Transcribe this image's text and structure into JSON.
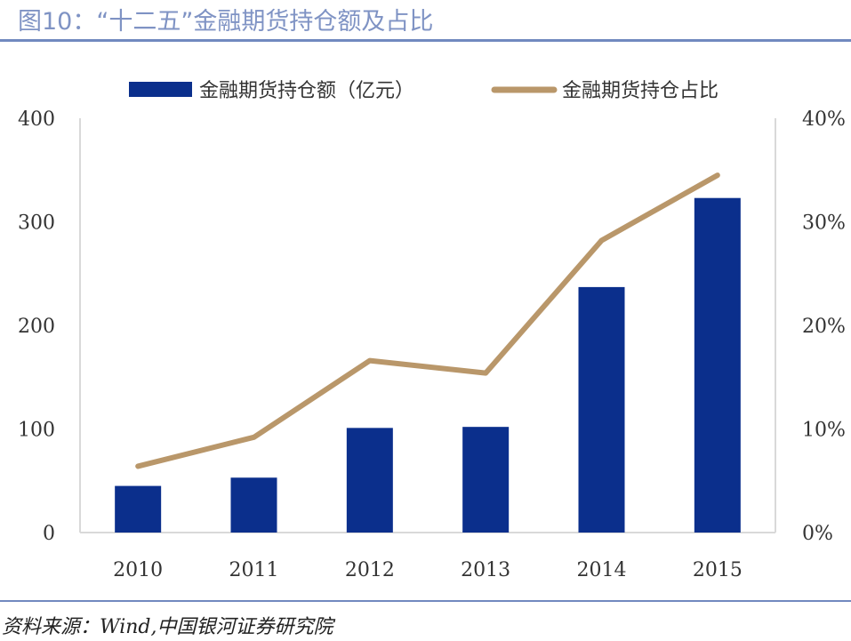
{
  "header": {
    "title": "图10：“十二五”金融期货持仓额及占比"
  },
  "footer": {
    "source": "资料来源：Wind,中国银河证券研究院"
  },
  "colors": {
    "bar": "#0b2f8c",
    "line": "#b9976a",
    "title": "#7f93c4",
    "rule": "#7189bf"
  },
  "chart_data": {
    "type": "bar+line",
    "categories": [
      "2010",
      "2011",
      "2012",
      "2013",
      "2014",
      "2015"
    ],
    "series": [
      {
        "name": "金融期货持仓额（亿元）",
        "type": "bar",
        "axis": "left",
        "values": [
          45,
          53,
          101,
          102,
          237,
          323
        ]
      },
      {
        "name": "金融期货持仓占比",
        "type": "line",
        "axis": "right",
        "values": [
          6.4,
          9.2,
          16.6,
          15.4,
          28.2,
          34.5
        ]
      }
    ],
    "left_axis": {
      "ylim": [
        0,
        400
      ],
      "ticks": [
        "0",
        "100",
        "200",
        "300",
        "400"
      ]
    },
    "right_axis": {
      "ylim": [
        0,
        40
      ],
      "ticks": [
        "0%",
        "10%",
        "20%",
        "30%",
        "40%"
      ]
    },
    "legend": "top",
    "grid": false
  }
}
